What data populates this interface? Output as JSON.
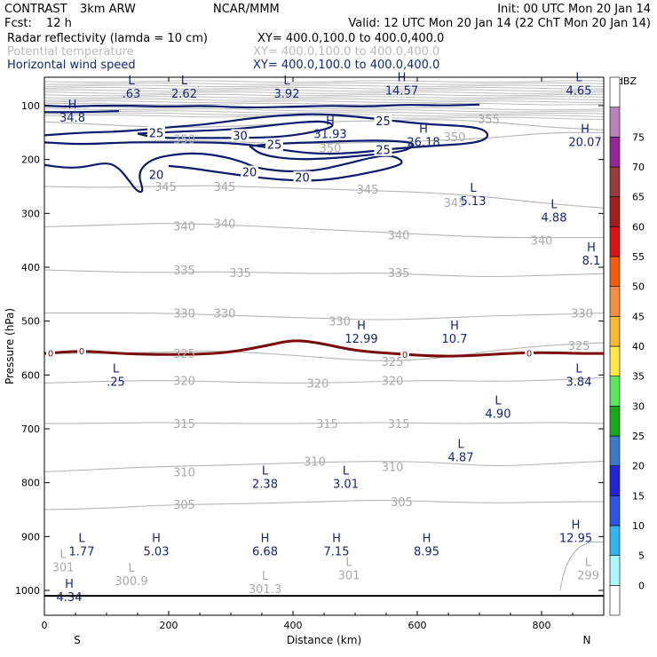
{
  "header": {
    "model": "CONTRAST",
    "resolution": "3km ARW",
    "center": "NCAR/MMM",
    "init": "Init: 00 UTC Mon 20 Jan 14",
    "fcst_label": "Fcst:",
    "fcst_value": "12 h",
    "valid": "Valid: 12 UTC Mon 20 Jan 14 (22 ChT Mon 20 Jan 14)",
    "fields": [
      {
        "name": "Radar reflectivity (lamda = 10 cm)",
        "xy": "XY= 400.0,100.0 to 400.0,400.0",
        "style": "black"
      },
      {
        "name": "Potential temperature",
        "xy": "XY= 400.0,100.0 to 400.0,400.0",
        "style": "gray"
      },
      {
        "name": "Horizontal wind speed",
        "xy": "XY= 400.0,100.0 to 400.0,400.0",
        "style": "blue"
      }
    ]
  },
  "chart_data": {
    "type": "cross-section contour",
    "xlabel": "Distance (km)",
    "ylabel": "Pressure (hPa)",
    "xlim": [
      0,
      900
    ],
    "ylim_pressure": [
      1100,
      50
    ],
    "x_ticks": [
      0,
      200,
      400,
      600,
      800
    ],
    "y_ticks": [
      100,
      200,
      300,
      400,
      500,
      600,
      700,
      800,
      900,
      1000
    ],
    "x_end_labels": {
      "left": "S",
      "right": "N"
    },
    "colorbar": {
      "unit": "dBZ",
      "levels": [
        0,
        5,
        10,
        15,
        20,
        25,
        30,
        35,
        40,
        45,
        50,
        55,
        60,
        65,
        70,
        75
      ],
      "colors": [
        "#ffffff",
        "#aaf8f8",
        "#32b4f0",
        "#2e54e6",
        "#2424d8",
        "#3c7ac8",
        "#18a818",
        "#5ae85a",
        "#fee646",
        "#f8b836",
        "#f68e46",
        "#f45e12",
        "#d81414",
        "#a01e1e",
        "#963c3c",
        "#96289a",
        "#ba82ba",
        "#ffffff"
      ]
    },
    "theta_contours": {
      "levels": [
        299,
        300.9,
        301,
        305,
        310,
        315,
        320,
        325,
        330,
        335,
        340,
        345,
        350,
        355
      ],
      "labels": [
        {
          "text": "355",
          "x": 715,
          "p": 125
        },
        {
          "text": "350",
          "x": 225,
          "p": 162
        },
        {
          "text": "350",
          "x": 460,
          "p": 178
        },
        {
          "text": "350",
          "x": 660,
          "p": 158
        },
        {
          "text": "345",
          "x": 195,
          "p": 250
        },
        {
          "text": "345",
          "x": 290,
          "p": 250
        },
        {
          "text": "345",
          "x": 520,
          "p": 255
        },
        {
          "text": "345",
          "x": 660,
          "p": 280
        },
        {
          "text": "340",
          "x": 225,
          "p": 323
        },
        {
          "text": "340",
          "x": 290,
          "p": 318
        },
        {
          "text": "340",
          "x": 570,
          "p": 340
        },
        {
          "text": "340",
          "x": 800,
          "p": 350
        },
        {
          "text": "335",
          "x": 225,
          "p": 405
        },
        {
          "text": "335",
          "x": 315,
          "p": 410
        },
        {
          "text": "335",
          "x": 570,
          "p": 410
        },
        {
          "text": "330",
          "x": 225,
          "p": 485
        },
        {
          "text": "330",
          "x": 290,
          "p": 485
        },
        {
          "text": "330",
          "x": 475,
          "p": 500
        },
        {
          "text": "330",
          "x": 865,
          "p": 485
        },
        {
          "text": "325",
          "x": 225,
          "p": 560
        },
        {
          "text": "325",
          "x": 560,
          "p": 575
        },
        {
          "text": "325",
          "x": 860,
          "p": 545
        },
        {
          "text": "320",
          "x": 225,
          "p": 610
        },
        {
          "text": "320",
          "x": 440,
          "p": 615
        },
        {
          "text": "320",
          "x": 560,
          "p": 610
        },
        {
          "text": "315",
          "x": 225,
          "p": 690
        },
        {
          "text": "315",
          "x": 455,
          "p": 690
        },
        {
          "text": "315",
          "x": 570,
          "p": 690
        },
        {
          "text": "310",
          "x": 225,
          "p": 780
        },
        {
          "text": "310",
          "x": 435,
          "p": 760
        },
        {
          "text": "310",
          "x": 560,
          "p": 770
        },
        {
          "text": "305",
          "x": 225,
          "p": 840
        },
        {
          "text": "305",
          "x": 575,
          "p": 835
        }
      ],
      "lines_p": [
        [
          130,
          135,
          140,
          140,
          135,
          130,
          128,
          125,
          130,
          140,
          145
        ],
        [
          170,
          170,
          165,
          165,
          170,
          170,
          168,
          165,
          160,
          150,
          150
        ],
        [
          250,
          252,
          250,
          248,
          252,
          255,
          258,
          262,
          270,
          282,
          290
        ],
        [
          325,
          322,
          318,
          320,
          325,
          330,
          335,
          340,
          345,
          345,
          345
        ],
        [
          405,
          408,
          410,
          408,
          410,
          412,
          410,
          415,
          418,
          415,
          412
        ],
        [
          485,
          485,
          485,
          488,
          492,
          495,
          498,
          495,
          490,
          488,
          485
        ],
        [
          560,
          560,
          558,
          555,
          560,
          568,
          575,
          570,
          555,
          545,
          540
        ],
        [
          615,
          612,
          610,
          612,
          615,
          615,
          612,
          610,
          612,
          610,
          605
        ],
        [
          690,
          690,
          688,
          690,
          690,
          690,
          688,
          690,
          690,
          688,
          690
        ],
        [
          780,
          775,
          770,
          768,
          765,
          762,
          760,
          762,
          770,
          765,
          760
        ],
        [
          850,
          848,
          842,
          840,
          838,
          835,
          832,
          835,
          838,
          836,
          835
        ]
      ],
      "x_grid": [
        0,
        90,
        180,
        270,
        360,
        450,
        540,
        630,
        720,
        810,
        900
      ]
    },
    "wind_contours": {
      "levels": [
        20,
        25,
        30
      ],
      "labels": [
        {
          "text": "25",
          "x": 180,
          "p": 150
        },
        {
          "text": "30",
          "x": 315,
          "p": 155
        },
        {
          "text": "25",
          "x": 370,
          "p": 172
        },
        {
          "text": "25",
          "x": 545,
          "p": 128
        },
        {
          "text": "25",
          "x": 545,
          "p": 182
        },
        {
          "text": "20",
          "x": 180,
          "p": 228
        },
        {
          "text": "20",
          "x": 330,
          "p": 223
        },
        {
          "text": "20",
          "x": 415,
          "p": 233
        }
      ]
    },
    "freezing_level": {
      "label": "0",
      "x": [
        0,
        60,
        120,
        180,
        240,
        300,
        360,
        400,
        440,
        500,
        560,
        620,
        680,
        740,
        800,
        860,
        900
      ],
      "p": [
        560,
        555,
        560,
        562,
        562,
        558,
        545,
        535,
        540,
        555,
        560,
        565,
        565,
        560,
        558,
        560,
        560
      ]
    },
    "highs_lows": [
      {
        "type": "L",
        "value": ".63",
        "x": 140,
        "p": 65,
        "color": "blue"
      },
      {
        "type": "L",
        "value": "2.62",
        "x": 225,
        "p": 65,
        "color": "blue"
      },
      {
        "type": "L",
        "value": "3.92",
        "x": 390,
        "p": 65,
        "color": "blue"
      },
      {
        "type": "H",
        "value": "14.57",
        "x": 575,
        "p": 60,
        "color": "blue"
      },
      {
        "type": "L",
        "value": "4.65",
        "x": 860,
        "p": 60,
        "color": "blue"
      },
      {
        "type": "H",
        "value": "34.8",
        "x": 45,
        "p": 110,
        "color": "blue"
      },
      {
        "type": "H",
        "value": "31.93",
        "x": 460,
        "p": 140,
        "color": "blue"
      },
      {
        "type": "H",
        "value": "26.18",
        "x": 610,
        "p": 155,
        "color": "blue"
      },
      {
        "type": "H",
        "value": "20.07",
        "x": 870,
        "p": 155,
        "color": "blue"
      },
      {
        "type": "L",
        "value": "5.13",
        "x": 690,
        "p": 265,
        "color": "blue"
      },
      {
        "type": "L",
        "value": "4.88",
        "x": 820,
        "p": 295,
        "color": "blue"
      },
      {
        "type": "H",
        "value": "8.1",
        "x": 880,
        "p": 375,
        "color": "blue"
      },
      {
        "type": "H",
        "value": "12.99",
        "x": 510,
        "p": 520,
        "color": "blue"
      },
      {
        "type": "H",
        "value": "10.7",
        "x": 660,
        "p": 520,
        "color": "blue"
      },
      {
        "type": "L",
        "value": ".25",
        "x": 115,
        "p": 600,
        "color": "blue"
      },
      {
        "type": "L",
        "value": "3.84",
        "x": 860,
        "p": 600,
        "color": "blue"
      },
      {
        "type": "L",
        "value": "4.90",
        "x": 730,
        "p": 660,
        "color": "blue"
      },
      {
        "type": "L",
        "value": "4.87",
        "x": 670,
        "p": 740,
        "color": "blue"
      },
      {
        "type": "L",
        "value": "2.38",
        "x": 355,
        "p": 790,
        "color": "blue"
      },
      {
        "type": "L",
        "value": "3.01",
        "x": 485,
        "p": 790,
        "color": "blue"
      },
      {
        "type": "L",
        "value": "1.77",
        "x": 60,
        "p": 915,
        "color": "blue"
      },
      {
        "type": "H",
        "value": "5.03",
        "x": 180,
        "p": 915,
        "color": "blue"
      },
      {
        "type": "H",
        "value": "6.68",
        "x": 355,
        "p": 915,
        "color": "blue"
      },
      {
        "type": "H",
        "value": "7.15",
        "x": 470,
        "p": 915,
        "color": "blue"
      },
      {
        "type": "H",
        "value": "8.95",
        "x": 615,
        "p": 915,
        "color": "blue"
      },
      {
        "type": "H",
        "value": "12.95",
        "x": 855,
        "p": 890,
        "color": "blue"
      },
      {
        "type": "L",
        "value": "301",
        "x": 30,
        "p": 945,
        "color": "gray"
      },
      {
        "type": "L",
        "value": "300.9",
        "x": 140,
        "p": 970,
        "color": "gray"
      },
      {
        "type": "L",
        "value": "301.3",
        "x": 355,
        "p": 985,
        "color": "gray"
      },
      {
        "type": "L",
        "value": "301",
        "x": 490,
        "p": 960,
        "color": "gray"
      },
      {
        "type": "L",
        "value": "299",
        "x": 875,
        "p": 960,
        "color": "gray"
      },
      {
        "type": "H",
        "value": "4.34",
        "x": 40,
        "p": 1000,
        "color": "blue"
      }
    ],
    "surface_p": 1010
  }
}
